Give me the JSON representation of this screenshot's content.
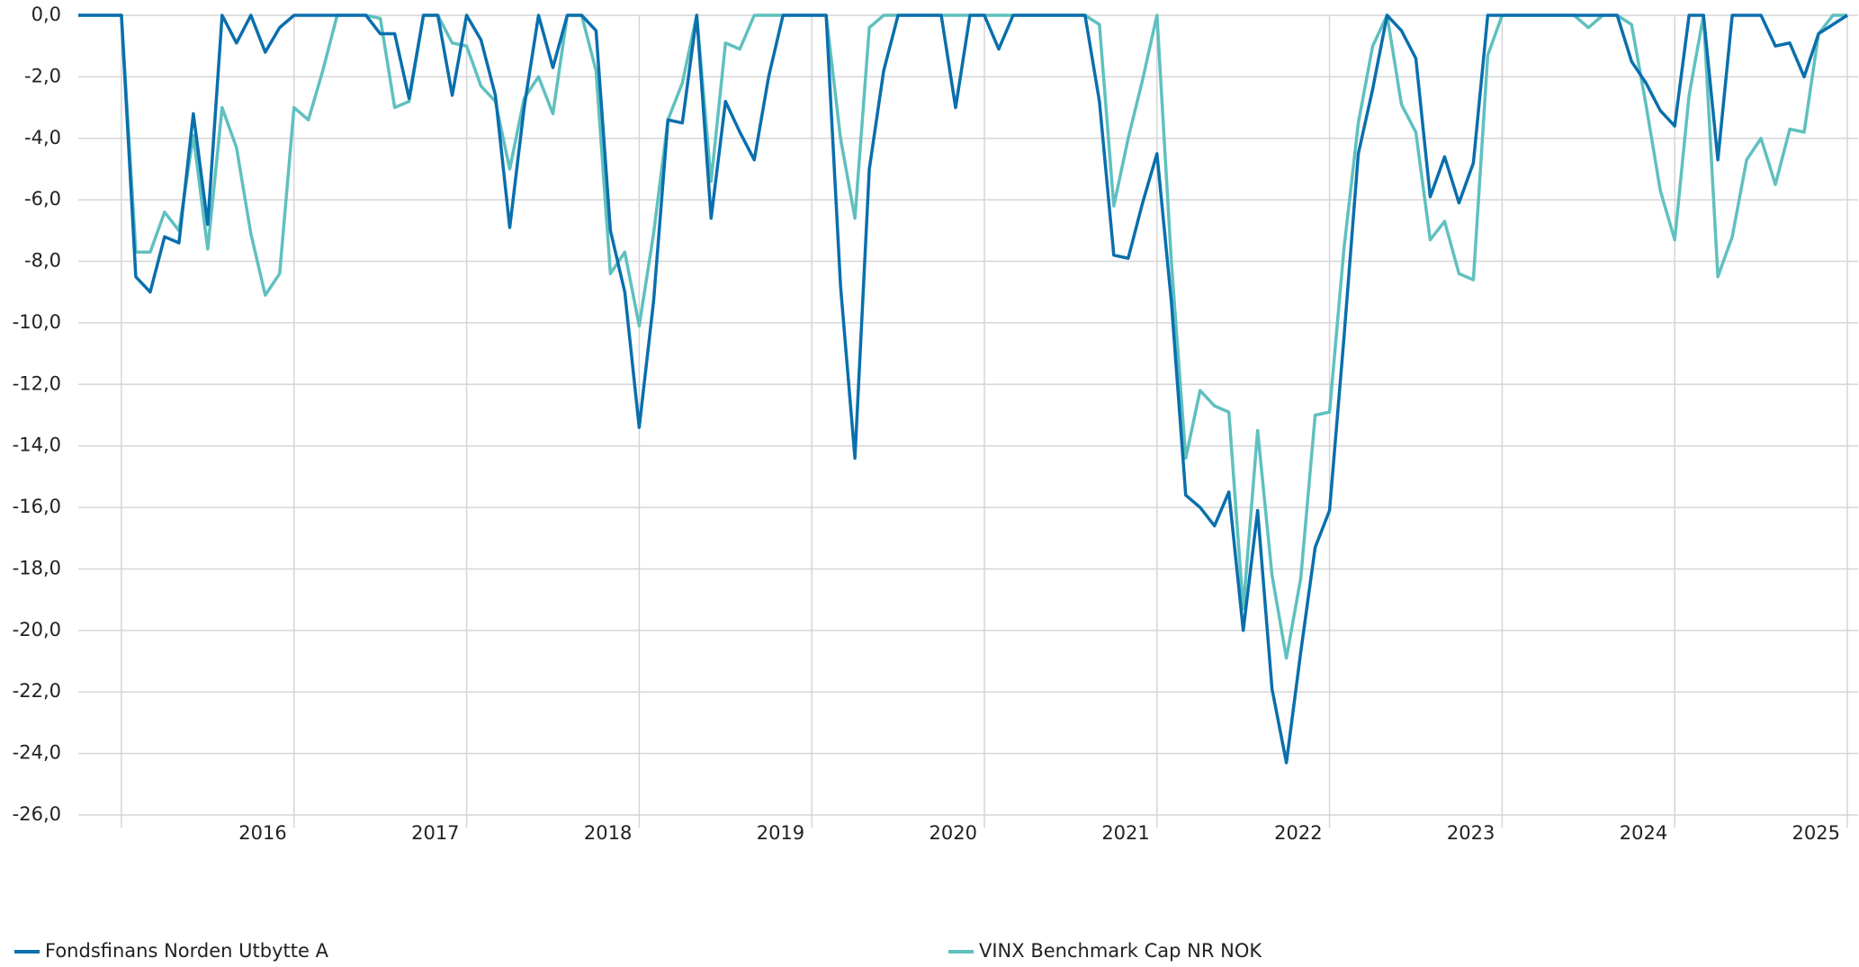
{
  "chart_data": {
    "type": "line",
    "categories": [
      null,
      null,
      null,
      null,
      null,
      null,
      null,
      null,
      null,
      null,
      null,
      null,
      null,
      null,
      null,
      "2016",
      null,
      null,
      null,
      null,
      null,
      null,
      null,
      null,
      null,
      null,
      null,
      "2017",
      null,
      null,
      null,
      null,
      null,
      null,
      null,
      null,
      null,
      null,
      null,
      "2018",
      null,
      null,
      null,
      null,
      null,
      null,
      null,
      null,
      null,
      null,
      null,
      "2019",
      null,
      null,
      null,
      null,
      null,
      null,
      null,
      null,
      null,
      null,
      null,
      "2020",
      null,
      null,
      null,
      null,
      null,
      null,
      null,
      null,
      null,
      null,
      null,
      "2021",
      null,
      null,
      null,
      null,
      null,
      null,
      null,
      null,
      null,
      null,
      null,
      "2022",
      null,
      null,
      null,
      null,
      null,
      null,
      null,
      null,
      null,
      null,
      null,
      "2023",
      null,
      null,
      null,
      null,
      null,
      null,
      null,
      null,
      null,
      null,
      null,
      "2024",
      null,
      null,
      null,
      null,
      null,
      null,
      null,
      null,
      null,
      null,
      null,
      "2025"
    ],
    "series": [
      {
        "name": "Fondsfinans Norden Utbytte A",
        "color": "#0a6fad",
        "values": [
          0,
          0,
          0,
          0,
          -8.5,
          -9.0,
          -7.2,
          -7.4,
          -3.2,
          -6.8,
          0,
          -0.9,
          0,
          -1.2,
          -0.4,
          0,
          0,
          0,
          0,
          0,
          0,
          -0.6,
          -0.6,
          -2.7,
          0,
          0,
          -2.6,
          0,
          -0.8,
          -2.6,
          -6.9,
          -3.0,
          0,
          -1.7,
          0,
          0,
          -0.5,
          -7.0,
          -9.0,
          -13.4,
          -9.3,
          -3.4,
          -3.5,
          0,
          -6.6,
          -2.8,
          -3.8,
          -4.7,
          -2.0,
          0,
          0,
          0,
          0,
          -8.8,
          -14.4,
          -5.0,
          -1.8,
          0,
          0,
          0,
          0,
          -3.0,
          0,
          0,
          -1.1,
          0,
          0,
          0,
          0,
          0,
          0,
          -2.8,
          -7.8,
          -7.9,
          -6.1,
          -4.5,
          -9.3,
          -15.6,
          -16.0,
          -16.6,
          -15.5,
          -20.0,
          -16.1,
          -21.9,
          -24.3,
          -20.7,
          -17.3,
          -16.1,
          -10.5,
          -4.5,
          -2.4,
          0,
          -0.5,
          -1.4,
          -5.9,
          -4.6,
          -6.1,
          -4.8,
          0,
          0,
          0,
          0,
          0,
          0,
          0,
          0,
          0,
          0,
          -1.5,
          -2.2,
          -3.1,
          -3.6,
          0,
          0,
          -4.7,
          0,
          0,
          0,
          -1.0,
          -0.9,
          -2.0,
          -0.6,
          -0.3,
          0
        ]
      },
      {
        "name": "VINX Benchmark Cap NR NOK",
        "color": "#5fc0bf",
        "values": [
          0,
          0,
          0,
          0,
          -7.7,
          -7.7,
          -6.4,
          -7.0,
          -3.9,
          -7.6,
          -3.0,
          -4.3,
          -7.1,
          -9.1,
          -8.4,
          -3.0,
          -3.4,
          -1.8,
          0,
          0,
          0,
          -0.1,
          -3.0,
          -2.8,
          0,
          0,
          -0.9,
          -1.0,
          -2.3,
          -2.8,
          -5.0,
          -2.7,
          -2.0,
          -3.2,
          0,
          0,
          -1.8,
          -8.4,
          -7.7,
          -10.1,
          -7.1,
          -3.4,
          -2.2,
          0,
          -5.4,
          -0.9,
          -1.1,
          0,
          0,
          0,
          0,
          0,
          0,
          -4.0,
          -6.6,
          -0.4,
          0,
          0,
          0,
          0,
          0,
          0,
          0,
          0,
          0,
          0,
          0,
          0,
          0,
          0,
          0,
          -0.3,
          -6.2,
          -4.0,
          -2.1,
          0,
          -8.0,
          -14.4,
          -12.2,
          -12.7,
          -12.9,
          -19.3,
          -13.5,
          -18.2,
          -20.9,
          -18.3,
          -13.0,
          -12.9,
          -7.6,
          -3.5,
          -1.0,
          0,
          -2.9,
          -3.8,
          -7.3,
          -6.7,
          -8.4,
          -8.6,
          -1.3,
          0,
          0,
          0,
          0,
          0,
          0,
          -0.4,
          0,
          0,
          -0.3,
          -2.9,
          -5.7,
          -7.3,
          -2.6,
          0,
          -8.5,
          -7.2,
          -4.7,
          -4.0,
          -5.5,
          -3.7,
          -3.8,
          -0.6,
          0,
          0
        ]
      }
    ],
    "ylim": [
      -26,
      0
    ],
    "yticks": [
      {
        "value": 0,
        "label": "0,0"
      },
      {
        "value": -2,
        "label": "-2,0"
      },
      {
        "value": -4,
        "label": "-4,0"
      },
      {
        "value": -6,
        "label": "-6,0"
      },
      {
        "value": -8,
        "label": "-8,0"
      },
      {
        "value": -10,
        "label": "-10,0"
      },
      {
        "value": -12,
        "label": "-12,0"
      },
      {
        "value": -14,
        "label": "-14,0"
      },
      {
        "value": -16,
        "label": "-16,0"
      },
      {
        "value": -18,
        "label": "-18,0"
      },
      {
        "value": -20,
        "label": "-20,0"
      },
      {
        "value": -22,
        "label": "-22,0"
      },
      {
        "value": -24,
        "label": "-24,0"
      },
      {
        "value": -26,
        "label": "-26,0"
      }
    ],
    "grid": true
  }
}
